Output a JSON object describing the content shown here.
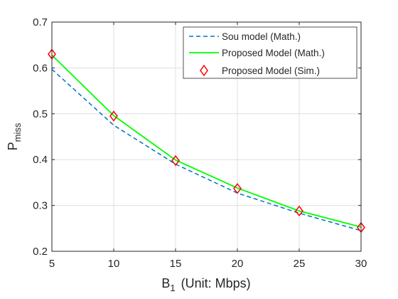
{
  "chart_data": {
    "type": "line",
    "xlabel": "B",
    "xlabel_sub": "1",
    "xlabel_suffix": "(Unit: Mbps)",
    "ylabel": "P",
    "ylabel_sub": "miss",
    "xlim": [
      5,
      30
    ],
    "ylim": [
      0.2,
      0.7
    ],
    "x_ticks": [
      5,
      10,
      15,
      20,
      25,
      30
    ],
    "y_ticks": [
      0.2,
      0.3,
      0.4,
      0.5,
      0.6,
      0.7
    ],
    "x_tick_labels": [
      "5",
      "10",
      "15",
      "20",
      "25",
      "30"
    ],
    "y_tick_labels": [
      "0.2",
      "0.3",
      "0.4",
      "0.5",
      "0.6",
      "0.7"
    ],
    "grid": true,
    "legend_position": "top-right",
    "x": [
      5,
      10,
      15,
      20,
      25,
      30
    ],
    "series": [
      {
        "name": "Sou model (Math.)",
        "style": "dashed-line",
        "color": "#0072BD",
        "values": [
          0.597,
          0.475,
          0.39,
          0.327,
          0.283,
          0.245
        ]
      },
      {
        "name": "Proposed Model (Math.)",
        "style": "solid-line",
        "color": "#00FF00",
        "values": [
          0.628,
          0.496,
          0.399,
          0.338,
          0.288,
          0.253
        ]
      },
      {
        "name": "Proposed Model (Sim.)",
        "style": "diamond-markers",
        "color": "#FF0000",
        "values": [
          0.63,
          0.495,
          0.398,
          0.337,
          0.288,
          0.252
        ]
      }
    ]
  }
}
